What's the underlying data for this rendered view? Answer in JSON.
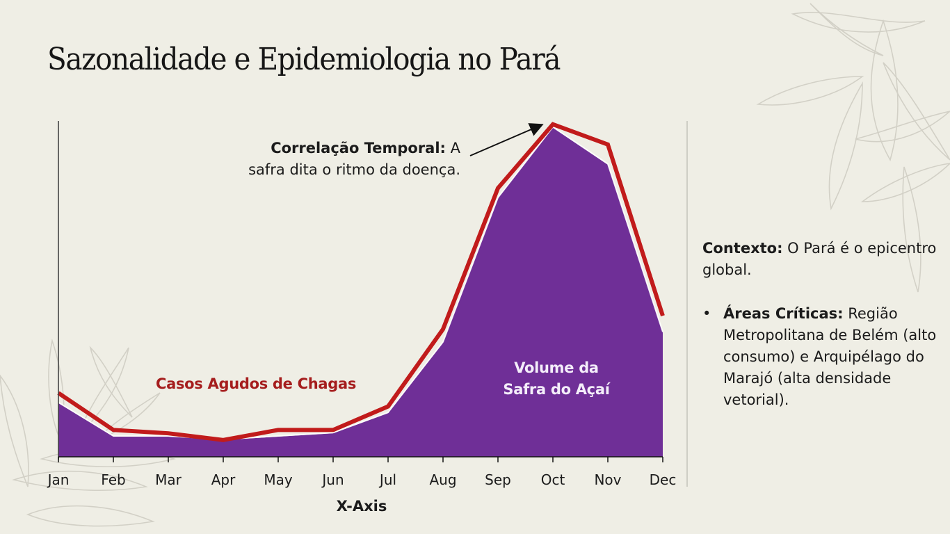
{
  "title": "Sazonalidade e Epidemiologia no Pará",
  "annotation": {
    "bold": "Correlação Temporal:",
    "text_line1_rest": " A",
    "text_line2": "safra dita o ritmo da doença."
  },
  "series_labels": {
    "chagas": "Casos Agudos de Chagas",
    "acai_line1": "Volume da",
    "acai_line2": "Safra do Açaí"
  },
  "sidebar": {
    "context_bold": "Contexto:",
    "context_text": " O Pará é o epicentro global.",
    "bullet_glyph": "•",
    "bullet_bold": "Áreas Críticas:",
    "bullet_text": " Região Metropolitana de Belém (alto consumo) e Arquipélago do Marajó (alta densidade vetorial)."
  },
  "colors": {
    "background": "#efeee5",
    "acai_fill": "#6f2f97",
    "chagas_line": "#c11b1b",
    "chagas_label": "#a51d1d",
    "axis": "#333333"
  },
  "chart_data": {
    "type": "area",
    "title": "",
    "xlabel": "X-Axis",
    "ylabel": "",
    "categories": [
      "Jan",
      "Feb",
      "Mar",
      "Apr",
      "May",
      "Jun",
      "Jul",
      "Aug",
      "Sep",
      "Oct",
      "Nov",
      "Dec"
    ],
    "ylim": [
      0,
      100
    ],
    "y_units": "relative index (no y-axis ticks shown)",
    "grid": false,
    "legend": "inline labels",
    "series": [
      {
        "name": "Volume da Safra do Açaí",
        "kind": "area",
        "values": [
          16,
          6,
          6,
          5,
          6,
          7,
          13,
          34,
          77,
          98,
          87,
          37
        ]
      },
      {
        "name": "Casos Agudos de Chagas",
        "kind": "line",
        "values": [
          19,
          8,
          7,
          5,
          8,
          8,
          15,
          38,
          80,
          99,
          93,
          42
        ]
      }
    ],
    "annotations": [
      {
        "text": "Correlação Temporal: A safra dita o ritmo da doença.",
        "points_to": "Oct"
      }
    ]
  }
}
